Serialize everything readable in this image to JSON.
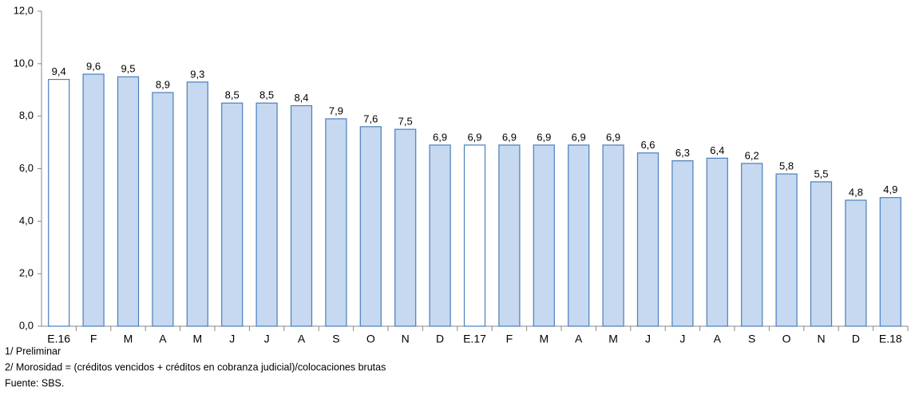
{
  "chart_data": {
    "type": "bar",
    "categories": [
      "E.16",
      "F",
      "M",
      "A",
      "M",
      "J",
      "J",
      "A",
      "S",
      "O",
      "N",
      "D",
      "E.17",
      "F",
      "M",
      "A",
      "M",
      "J",
      "J",
      "A",
      "S",
      "O",
      "N",
      "D",
      "E.18"
    ],
    "values": [
      9.4,
      9.6,
      9.5,
      8.9,
      9.3,
      8.5,
      8.5,
      8.4,
      7.9,
      7.6,
      7.5,
      6.9,
      6.9,
      6.9,
      6.9,
      6.9,
      6.9,
      6.6,
      6.3,
      6.4,
      6.2,
      5.8,
      5.5,
      4.8,
      4.9
    ],
    "value_labels": [
      "9,4",
      "9,6",
      "9,5",
      "8,9",
      "9,3",
      "8,5",
      "8,5",
      "8,4",
      "7,9",
      "7,6",
      "7,5",
      "6,9",
      "6,9",
      "6,9",
      "6,9",
      "6,9",
      "6,9",
      "6,6",
      "6,3",
      "6,4",
      "6,2",
      "5,8",
      "5,5",
      "4,8",
      "4,9"
    ],
    "colors": [
      "#ffffff",
      "#c6d9f1",
      "#c6d9f1",
      "#c6d9f1",
      "#c6d9f1",
      "#c6d9f1",
      "#c6d9f1",
      "#c6d9f1",
      "#c6d9f1",
      "#c6d9f1",
      "#c6d9f1",
      "#c6d9f1",
      "#ffffff",
      "#c6d9f1",
      "#c6d9f1",
      "#c6d9f1",
      "#c6d9f1",
      "#c6d9f1",
      "#c6d9f1",
      "#c6d9f1",
      "#c6d9f1",
      "#c6d9f1",
      "#c6d9f1",
      "#c6d9f1",
      "#c6d9f1"
    ],
    "edge_color": "#4a7ebb",
    "ylim": [
      0,
      12
    ],
    "yticks": [
      {
        "value": 0,
        "label": "0,0"
      },
      {
        "value": 2,
        "label": "2,0"
      },
      {
        "value": 4,
        "label": "4,0"
      },
      {
        "value": 6,
        "label": "6,0"
      },
      {
        "value": 8,
        "label": "8,0"
      },
      {
        "value": 10,
        "label": "10,0"
      },
      {
        "value": 12,
        "label": "12,0"
      }
    ],
    "notes": [
      "1/ Preliminar",
      "2/ Morosidad = (créditos vencidos + créditos en cobranza judicial)/colocaciones brutas",
      "Fuente: SBS."
    ]
  }
}
